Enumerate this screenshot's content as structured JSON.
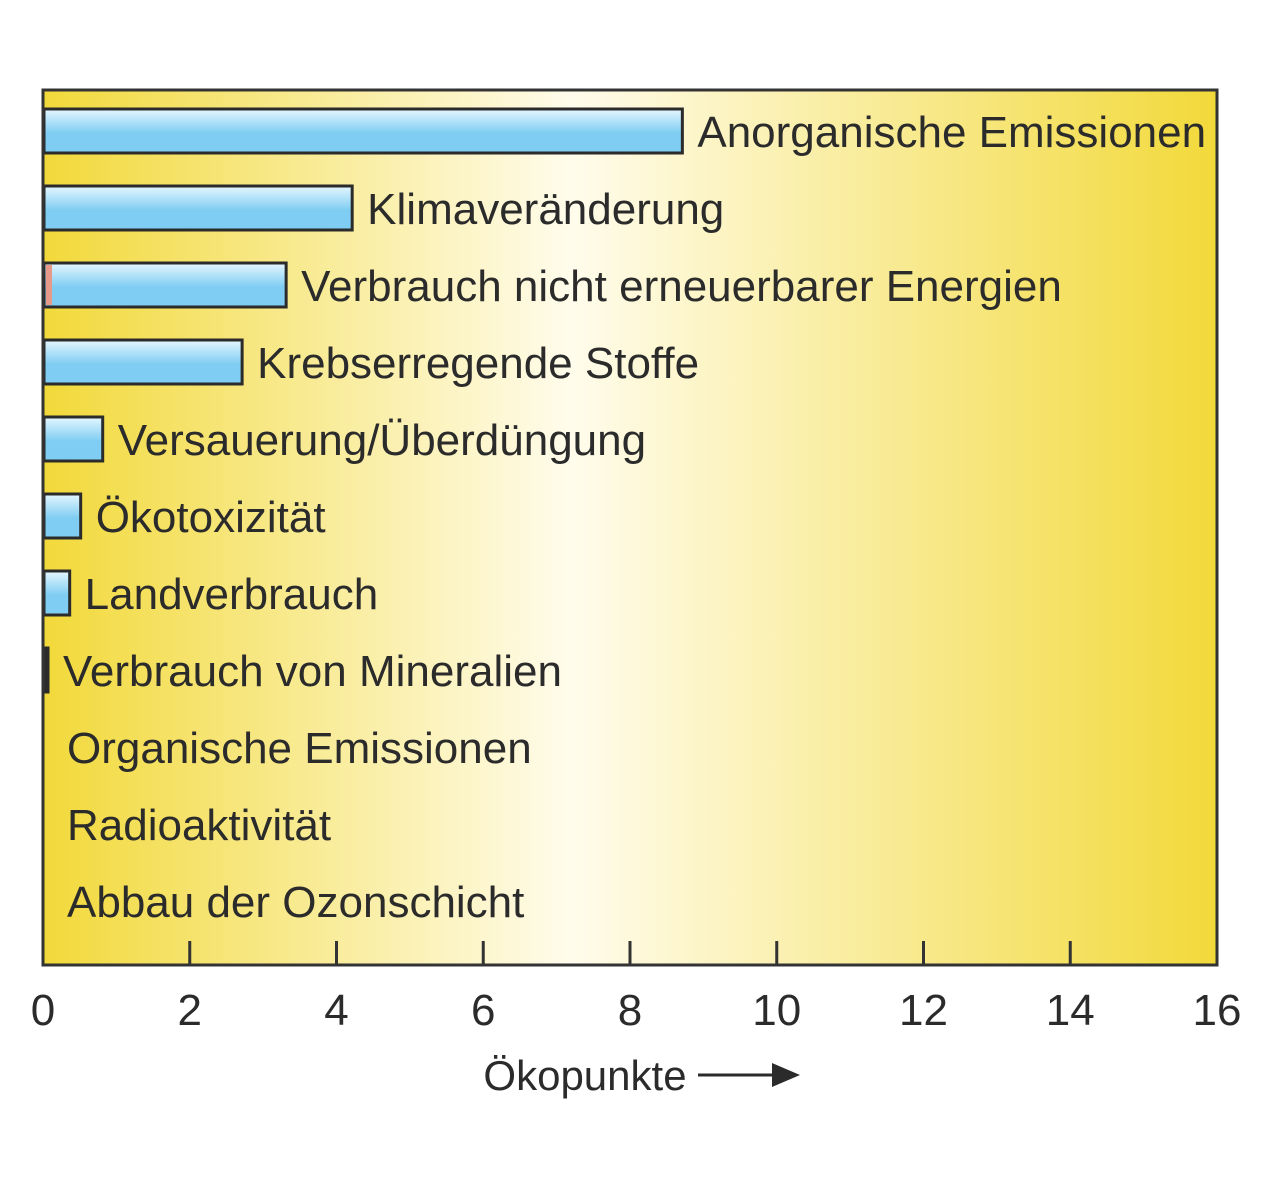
{
  "chart_data": {
    "type": "bar",
    "orientation": "horizontal",
    "categories": [
      "Anorganische Emissionen",
      "Klimaveränderung",
      "Verbrauch nicht erneuerbarer Energien",
      "Krebserregende Stoffe",
      "Versauerung/Überdüngung",
      "Ökotoxizität",
      "Landverbrauch",
      "Verbrauch von Mineralien",
      "Organische Emissionen",
      "Radioaktivität",
      "Abbau der Ozonschicht"
    ],
    "values": [
      8.7,
      4.2,
      3.3,
      2.7,
      0.8,
      0.5,
      0.35,
      0.05,
      0,
      0,
      0
    ],
    "xlabel": "Ökopunkte",
    "xlim": [
      0,
      16
    ],
    "xticks": [
      "0",
      "2",
      "4",
      "6",
      "8",
      "10",
      "12",
      "14",
      "16"
    ],
    "grid": false,
    "legend": "none",
    "colors": {
      "bar_fill_light": "#e6f7ff",
      "bar_fill_dark": "#7fcdf2",
      "bar_stroke": "#2b2b2b",
      "background_edge": "#f2d93a",
      "background_center": "#fffcec",
      "frame": "#333333",
      "accent_marker": "#e89a8a"
    }
  }
}
